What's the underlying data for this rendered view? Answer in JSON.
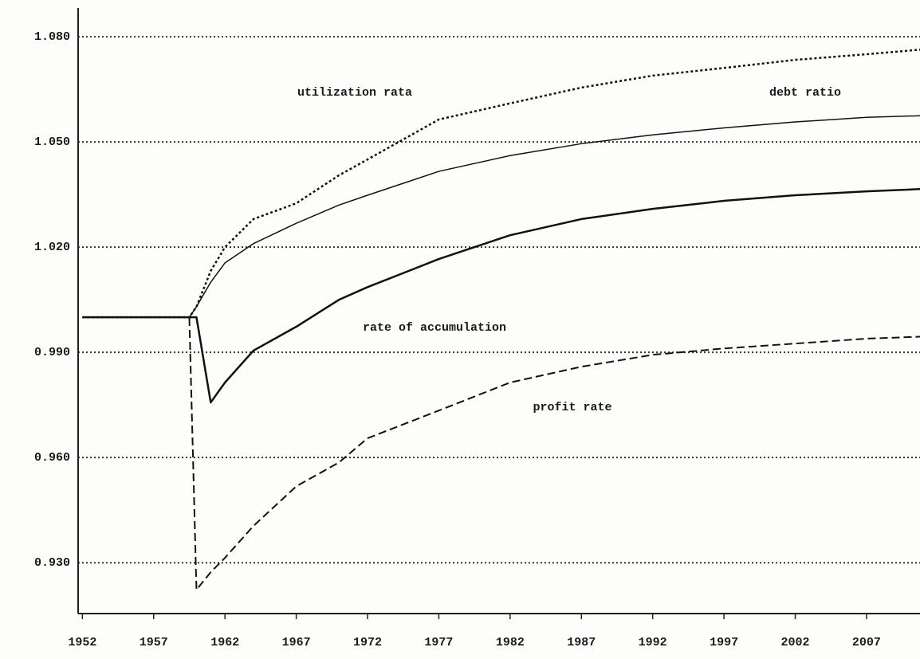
{
  "chart_data": {
    "type": "line",
    "x": [
      1952,
      1959,
      1959.5,
      1960,
      1961,
      1962,
      1964,
      1967,
      1970,
      1972,
      1977,
      1982,
      1987,
      1992,
      1997,
      2002,
      2007,
      2011
    ],
    "series": [
      {
        "name": "utilization rata",
        "color": "#111111",
        "style": "dotted",
        "values": [
          1.0,
          1.0,
          1.0,
          1.003,
          1.0132,
          1.02,
          1.028,
          1.0325,
          1.0405,
          1.045,
          1.0564,
          1.061,
          1.0655,
          1.0689,
          1.0711,
          1.0734,
          1.075,
          1.0764
        ]
      },
      {
        "name": "debt ratio",
        "color": "#111111",
        "style": "solid",
        "values": [
          1.0,
          1.0,
          1.0,
          1.003,
          1.01,
          1.0155,
          1.021,
          1.0268,
          1.032,
          1.0348,
          1.0416,
          1.0461,
          1.0495,
          1.052,
          1.054,
          1.0557,
          1.057,
          1.0575
        ]
      },
      {
        "name": "rate of accumulation",
        "color": "#111111",
        "style": "thick",
        "values": [
          1.0,
          1.0,
          1.0,
          1.0,
          0.9757,
          0.9814,
          0.9905,
          0.9973,
          1.005,
          1.0086,
          1.0166,
          1.0234,
          1.028,
          1.0309,
          1.0332,
          1.0348,
          1.0359,
          1.0366
        ]
      },
      {
        "name": "profit rate",
        "color": "#111111",
        "style": "dashed",
        "values": [
          1.0,
          1.0,
          1.0,
          0.9223,
          0.9273,
          0.9314,
          0.9405,
          0.9518,
          0.9586,
          0.9655,
          0.9734,
          0.9814,
          0.9859,
          0.9893,
          0.9911,
          0.9925,
          0.9939,
          0.9945
        ]
      }
    ],
    "xlim": [
      1951.7,
      2010.75
    ],
    "xticks": [
      1952,
      1957,
      1962,
      1967,
      1972,
      1977,
      1982,
      1987,
      1992,
      1997,
      2002,
      2007
    ],
    "ylim": [
      0.9155,
      1.0882
    ],
    "yticks": [
      {
        "value": 0.93,
        "label": "0.930"
      },
      {
        "value": 0.96,
        "label": "0.960"
      },
      {
        "value": 0.99,
        "label": "0.990"
      },
      {
        "value": 1.02,
        "label": "1.020"
      },
      {
        "value": 1.05,
        "label": "1.050"
      },
      {
        "value": 1.08,
        "label": "1.080"
      }
    ],
    "grid": true
  }
}
